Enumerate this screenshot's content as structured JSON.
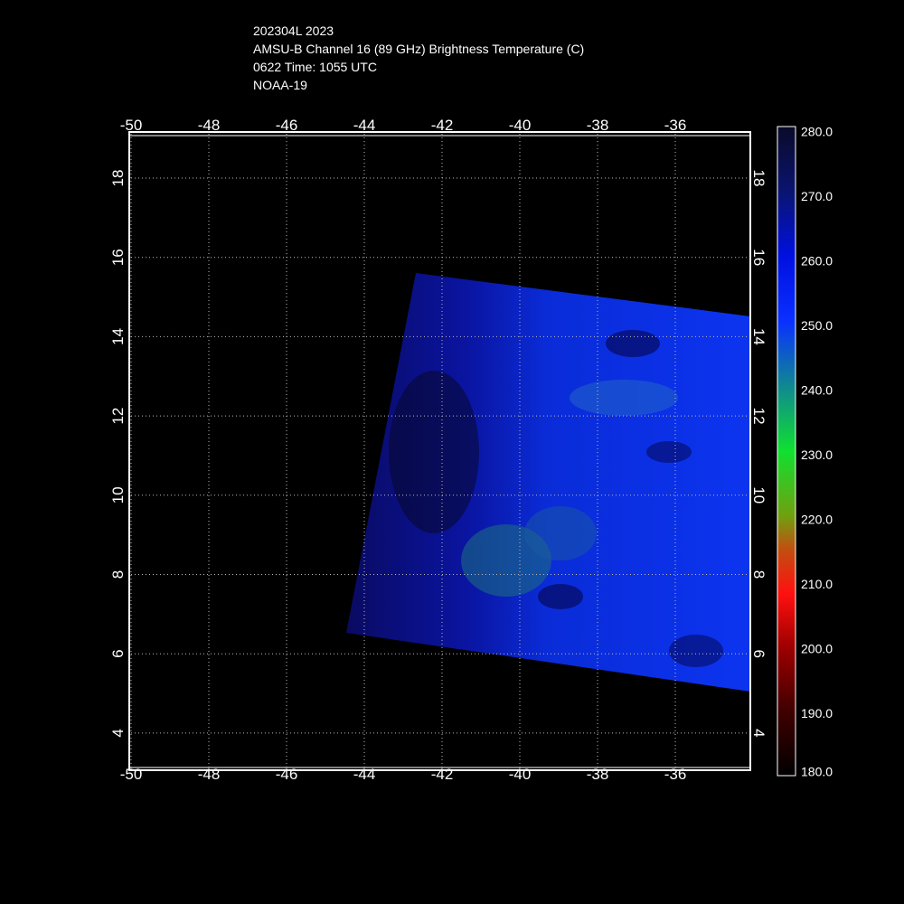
{
  "header": {
    "lines": [
      "202304L 2023",
      "AMSU-B Channel 16 (89 GHz) Brightness Temperature (C)",
      "0622 Time: 1055 UTC",
      "NOAA-19"
    ]
  },
  "axes": {
    "x_ticks": [
      "-50",
      "-48",
      "-46",
      "-44",
      "-42",
      "-40",
      "-38",
      "-36"
    ],
    "y_ticks": [
      "18",
      "16",
      "14",
      "12",
      "10",
      "8",
      "6",
      "4"
    ]
  },
  "colorbar": {
    "labels": [
      "280.0",
      "270.0",
      "260.0",
      "250.0",
      "240.0",
      "230.0",
      "220.0",
      "210.0",
      "200.0",
      "190.0",
      "180.0"
    ]
  }
}
